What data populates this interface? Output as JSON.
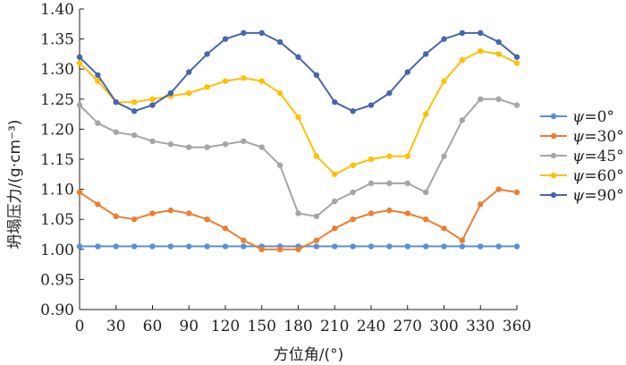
{
  "chart_data": {
    "type": "line",
    "xlabel": "方位角/(°)",
    "ylabel": "坍塌压力/(g·cm⁻³)",
    "xlim": [
      0,
      360
    ],
    "ylim": [
      0.9,
      1.4
    ],
    "xticks": [
      "0",
      "30",
      "60",
      "90",
      "120",
      "150",
      "180",
      "210",
      "240",
      "270",
      "300",
      "330",
      "360"
    ],
    "yticks": [
      "0.90",
      "0.95",
      "1.00",
      "1.05",
      "1.10",
      "1.15",
      "1.20",
      "1.25",
      "1.30",
      "1.35",
      "1.40"
    ],
    "grid": false,
    "legend_position": "right",
    "x": [
      0,
      15,
      30,
      45,
      60,
      75,
      90,
      105,
      120,
      135,
      150,
      165,
      180,
      195,
      210,
      225,
      240,
      255,
      270,
      285,
      300,
      315,
      330,
      345,
      360
    ],
    "series": [
      {
        "name": "ψ=0°",
        "legend_sym": "ψ",
        "legend_rest": "=0°",
        "color": "#5b8fd6",
        "values": [
          1.005,
          1.005,
          1.005,
          1.005,
          1.005,
          1.005,
          1.005,
          1.005,
          1.005,
          1.005,
          1.005,
          1.005,
          1.005,
          1.005,
          1.005,
          1.005,
          1.005,
          1.005,
          1.005,
          1.005,
          1.005,
          1.005,
          1.005,
          1.005,
          1.005
        ]
      },
      {
        "name": "ψ=30°",
        "legend_sym": "ψ",
        "legend_rest": "=30°",
        "color": "#ed7d31",
        "values": [
          1.095,
          1.075,
          1.055,
          1.05,
          1.06,
          1.065,
          1.06,
          1.05,
          1.035,
          1.015,
          1.0,
          1.0,
          1.0,
          1.015,
          1.035,
          1.05,
          1.06,
          1.065,
          1.06,
          1.05,
          1.035,
          1.015,
          1.075,
          1.1,
          1.095
        ]
      },
      {
        "name": "ψ=45°",
        "legend_sym": "ψ",
        "legend_rest": "=45°",
        "color": "#a5a5a5",
        "values": [
          1.24,
          1.21,
          1.195,
          1.19,
          1.18,
          1.175,
          1.17,
          1.17,
          1.175,
          1.18,
          1.17,
          1.14,
          1.06,
          1.055,
          1.08,
          1.095,
          1.11,
          1.11,
          1.11,
          1.095,
          1.155,
          1.215,
          1.25,
          1.25,
          1.24
        ]
      },
      {
        "name": "ψ=60°",
        "legend_sym": "ψ",
        "legend_rest": "=60°",
        "color": "#ffc000",
        "values": [
          1.31,
          1.28,
          1.245,
          1.245,
          1.25,
          1.255,
          1.26,
          1.27,
          1.28,
          1.285,
          1.28,
          1.26,
          1.22,
          1.155,
          1.125,
          1.14,
          1.15,
          1.155,
          1.155,
          1.225,
          1.28,
          1.315,
          1.33,
          1.325,
          1.31
        ]
      },
      {
        "name": "ψ=90°",
        "legend_sym": "ψ",
        "legend_rest": "=90°",
        "color": "#4565ad",
        "values": [
          1.32,
          1.29,
          1.245,
          1.23,
          1.24,
          1.26,
          1.295,
          1.325,
          1.35,
          1.36,
          1.36,
          1.345,
          1.32,
          1.29,
          1.245,
          1.23,
          1.24,
          1.26,
          1.295,
          1.325,
          1.35,
          1.36,
          1.36,
          1.345,
          1.32
        ]
      }
    ]
  }
}
